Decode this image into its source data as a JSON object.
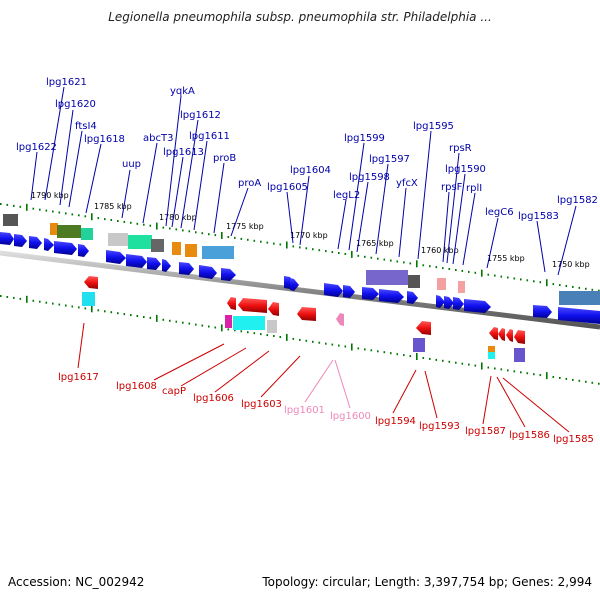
{
  "title": "Legionella pneumophila subsp. pneumophila str. Philadelphia ...",
  "footer": {
    "accession": "Accession: NC_002942",
    "info": "Topology: circular; Length: 3,397,754 bp; Genes: 2,994"
  },
  "scale_labels": [
    "1790 kbp",
    "1785 kbp",
    "1780 kbp",
    "1775 kbp",
    "1770 kbp",
    "1765 kbp",
    "1760 kbp",
    "1755 kbp",
    "1750 kbp"
  ],
  "top_genes": [
    "lpg1622",
    "lpg1621",
    "lpg1620",
    "ftsI4",
    "lpg1618",
    "uup",
    "abcT3",
    "yqkA",
    "lpg1613",
    "lpg1612",
    "lpg1611",
    "proB",
    "proA",
    "lpg1605",
    "lpg1604",
    "legL2",
    "lpg1599",
    "lpg1598",
    "lpg1597",
    "yfcX",
    "lpg1595",
    "rpsF",
    "rpsR",
    "lpg1590",
    "rplI",
    "legC6",
    "lpg1583",
    "lpg1582"
  ],
  "bottom_genes": [
    "lpg1617",
    "lpg1608",
    "capP",
    "lpg1606",
    "lpg1603",
    "lpg1601",
    "lpg1600",
    "lpg1594",
    "lpg1593",
    "lpg1587",
    "lpg1586",
    "lpg1585"
  ],
  "colors": {
    "forward_gene": "#1010ee",
    "reverse_gene": "#ee1010",
    "pseudo_gene": "#ee88bb",
    "label_top": "#0000aa",
    "label_bottom": "#cc0000",
    "tick": "#007700",
    "backbone": "#999999"
  }
}
